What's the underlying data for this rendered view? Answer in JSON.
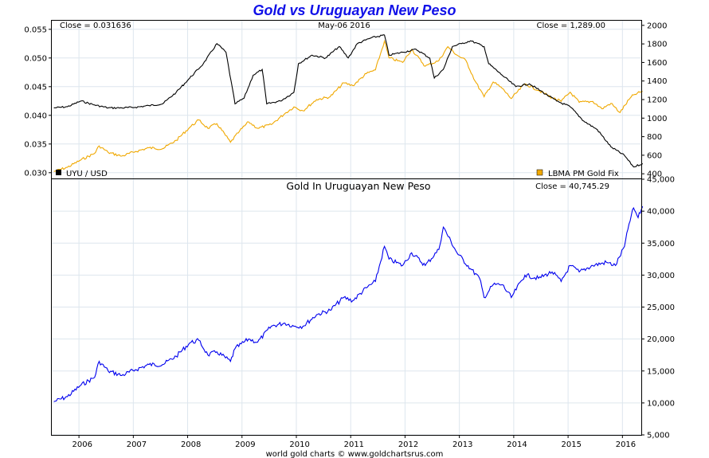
{
  "title": "Gold vs Uruguayan New Peso",
  "footer": "world gold charts © www.goldchartsrus.com",
  "colors": {
    "title": "#1010e8",
    "uyu_usd": "#000000",
    "gold_usd": "#f0a800",
    "gold_uyu": "#0000ee",
    "grid": "#dde6ee"
  },
  "chart_data": [
    {
      "type": "line",
      "panel": "top",
      "date_label": "May-06  2016",
      "x_tick_labels": [
        "2006",
        "2007",
        "2008",
        "2009",
        "2010",
        "2011",
        "2012",
        "2013",
        "2014",
        "2015",
        "2016"
      ],
      "x_range": [
        "2005-07-01",
        "2016-05-06"
      ],
      "left_axis": {
        "ticks": [
          "0.055",
          "0.050",
          "0.045",
          "0.040",
          "0.035",
          "0.030"
        ],
        "ylim": [
          0.029,
          0.0565
        ]
      },
      "right_axis": {
        "ticks": [
          "2000",
          "1800",
          "1600",
          "1400",
          "1200",
          "1000",
          "800",
          "600",
          "400"
        ],
        "ylim": [
          350,
          2050
        ]
      },
      "series": [
        {
          "name": "UYU / USD",
          "axis": "left",
          "close_label": "Close = 0.031636",
          "legend_position": "bottom-left",
          "points": [
            [
              "2005-07",
              0.0413
            ],
            [
              "2005-10",
              0.0415
            ],
            [
              "2006-01",
              0.0425
            ],
            [
              "2006-04",
              0.0418
            ],
            [
              "2006-07",
              0.0413
            ],
            [
              "2006-10",
              0.0413
            ],
            [
              "2007-01",
              0.0414
            ],
            [
              "2007-04",
              0.0417
            ],
            [
              "2007-07",
              0.042
            ],
            [
              "2007-10",
              0.044
            ],
            [
              "2008-01",
              0.0465
            ],
            [
              "2008-04",
              0.049
            ],
            [
              "2008-07",
              0.0525
            ],
            [
              "2008-09",
              0.051
            ],
            [
              "2008-11",
              0.042
            ],
            [
              "2009-01",
              0.043
            ],
            [
              "2009-03",
              0.047
            ],
            [
              "2009-05",
              0.048
            ],
            [
              "2009-06",
              0.042
            ],
            [
              "2009-09",
              0.0425
            ],
            [
              "2009-12",
              0.044
            ],
            [
              "2010-01",
              0.049
            ],
            [
              "2010-04",
              0.0505
            ],
            [
              "2010-07",
              0.05
            ],
            [
              "2010-10",
              0.052
            ],
            [
              "2010-12",
              0.05
            ],
            [
              "2011-02",
              0.0525
            ],
            [
              "2011-05",
              0.0535
            ],
            [
              "2011-08",
              0.054
            ],
            [
              "2011-09",
              0.0505
            ],
            [
              "2011-12",
              0.051
            ],
            [
              "2012-03",
              0.0515
            ],
            [
              "2012-06",
              0.05
            ],
            [
              "2012-07",
              0.0465
            ],
            [
              "2012-09",
              0.048
            ],
            [
              "2012-11",
              0.052
            ],
            [
              "2013-01",
              0.0525
            ],
            [
              "2013-03",
              0.053
            ],
            [
              "2013-06",
              0.052
            ],
            [
              "2013-07",
              0.049
            ],
            [
              "2013-10",
              0.047
            ],
            [
              "2014-01",
              0.045
            ],
            [
              "2014-04",
              0.0455
            ],
            [
              "2014-07",
              0.044
            ],
            [
              "2014-10",
              0.0425
            ],
            [
              "2015-01",
              0.0415
            ],
            [
              "2015-04",
              0.039
            ],
            [
              "2015-07",
              0.0375
            ],
            [
              "2015-10",
              0.0345
            ],
            [
              "2016-01",
              0.033
            ],
            [
              "2016-03",
              0.031
            ],
            [
              "2016-05",
              0.0316
            ]
          ]
        },
        {
          "name": "LBMA PM Gold Fix",
          "axis": "right",
          "close_label": "Close = 1,289.00",
          "legend_position": "bottom-right",
          "points": [
            [
              "2005-07",
              425
            ],
            [
              "2005-10",
              470
            ],
            [
              "2006-01",
              550
            ],
            [
              "2006-04",
              620
            ],
            [
              "2006-05",
              700
            ],
            [
              "2006-07",
              630
            ],
            [
              "2006-10",
              590
            ],
            [
              "2007-01",
              640
            ],
            [
              "2007-04",
              680
            ],
            [
              "2007-07",
              670
            ],
            [
              "2007-10",
              760
            ],
            [
              "2008-01",
              900
            ],
            [
              "2008-03",
              980
            ],
            [
              "2008-05",
              890
            ],
            [
              "2008-07",
              940
            ],
            [
              "2008-10",
              740
            ],
            [
              "2008-12",
              860
            ],
            [
              "2009-02",
              960
            ],
            [
              "2009-04",
              890
            ],
            [
              "2009-07",
              930
            ],
            [
              "2009-10",
              1050
            ],
            [
              "2009-12",
              1120
            ],
            [
              "2010-02",
              1080
            ],
            [
              "2010-05",
              1200
            ],
            [
              "2010-08",
              1230
            ],
            [
              "2010-11",
              1380
            ],
            [
              "2011-01",
              1350
            ],
            [
              "2011-04",
              1480
            ],
            [
              "2011-06",
              1520
            ],
            [
              "2011-08",
              1830
            ],
            [
              "2011-09",
              1650
            ],
            [
              "2011-12",
              1600
            ],
            [
              "2012-02",
              1740
            ],
            [
              "2012-05",
              1560
            ],
            [
              "2012-08",
              1620
            ],
            [
              "2012-10",
              1770
            ],
            [
              "2012-12",
              1680
            ],
            [
              "2013-02",
              1620
            ],
            [
              "2013-04",
              1400
            ],
            [
              "2013-06",
              1230
            ],
            [
              "2013-08",
              1390
            ],
            [
              "2013-10",
              1320
            ],
            [
              "2013-12",
              1210
            ],
            [
              "2014-03",
              1370
            ],
            [
              "2014-06",
              1300
            ],
            [
              "2014-09",
              1220
            ],
            [
              "2014-11",
              1180
            ],
            [
              "2015-01",
              1280
            ],
            [
              "2015-03",
              1170
            ],
            [
              "2015-06",
              1180
            ],
            [
              "2015-08",
              1100
            ],
            [
              "2015-10",
              1160
            ],
            [
              "2015-12",
              1060
            ],
            [
              "2016-02",
              1200
            ],
            [
              "2016-03",
              1250
            ],
            [
              "2016-05",
              1289
            ]
          ]
        }
      ]
    },
    {
      "type": "line",
      "panel": "bottom",
      "title": "Gold In Uruguayan New Peso",
      "x_tick_labels": [
        "2006",
        "2007",
        "2008",
        "2009",
        "2010",
        "2011",
        "2012",
        "2013",
        "2014",
        "2015",
        "2016"
      ],
      "x_range": [
        "2005-07-01",
        "2016-05-06"
      ],
      "right_axis": {
        "ticks": [
          "45,000",
          "40,000",
          "35,000",
          "30,000",
          "25,000",
          "20,000",
          "15,000",
          "10,000",
          "5,000"
        ],
        "ylim": [
          5000,
          45000
        ]
      },
      "series": [
        {
          "name": "Gold In Uruguayan New Peso",
          "close_label": "Close = 40,745.29",
          "points": [
            [
              "2005-07",
              10200
            ],
            [
              "2005-10",
              11000
            ],
            [
              "2006-01",
              12800
            ],
            [
              "2006-04",
              14000
            ],
            [
              "2006-05",
              16500
            ],
            [
              "2006-07",
              15000
            ],
            [
              "2006-10",
              14300
            ],
            [
              "2007-01",
              15200
            ],
            [
              "2007-04",
              16000
            ],
            [
              "2007-07",
              16000
            ],
            [
              "2007-10",
              17300
            ],
            [
              "2008-01",
              19400
            ],
            [
              "2008-03",
              19800
            ],
            [
              "2008-05",
              17500
            ],
            [
              "2008-07",
              18000
            ],
            [
              "2008-10",
              16500
            ],
            [
              "2008-11",
              18500
            ],
            [
              "2009-02",
              20000
            ],
            [
              "2009-04",
              19500
            ],
            [
              "2009-07",
              22000
            ],
            [
              "2009-10",
              22500
            ],
            [
              "2009-12",
              22000
            ],
            [
              "2010-02",
              22000
            ],
            [
              "2010-05",
              23800
            ],
            [
              "2010-08",
              24500
            ],
            [
              "2010-11",
              26500
            ],
            [
              "2011-01",
              26000
            ],
            [
              "2011-04",
              28000
            ],
            [
              "2011-06",
              29000
            ],
            [
              "2011-08",
              34500
            ],
            [
              "2011-09",
              32500
            ],
            [
              "2011-12",
              31500
            ],
            [
              "2012-02",
              33500
            ],
            [
              "2012-05",
              31500
            ],
            [
              "2012-08",
              34000
            ],
            [
              "2012-09",
              37500
            ],
            [
              "2012-12",
              33500
            ],
            [
              "2013-03",
              31000
            ],
            [
              "2013-05",
              29500
            ],
            [
              "2013-06",
              26500
            ],
            [
              "2013-08",
              28500
            ],
            [
              "2013-10",
              28500
            ],
            [
              "2013-12",
              26500
            ],
            [
              "2014-03",
              30000
            ],
            [
              "2014-06",
              29500
            ],
            [
              "2014-09",
              30500
            ],
            [
              "2014-11",
              29000
            ],
            [
              "2015-01",
              31500
            ],
            [
              "2015-03",
              30500
            ],
            [
              "2015-06",
              31500
            ],
            [
              "2015-09",
              32000
            ],
            [
              "2015-11",
              31500
            ],
            [
              "2016-01",
              34500
            ],
            [
              "2016-02",
              38000
            ],
            [
              "2016-03",
              40500
            ],
            [
              "2016-04",
              39000
            ],
            [
              "2016-05",
              40745
            ]
          ]
        }
      ]
    }
  ]
}
